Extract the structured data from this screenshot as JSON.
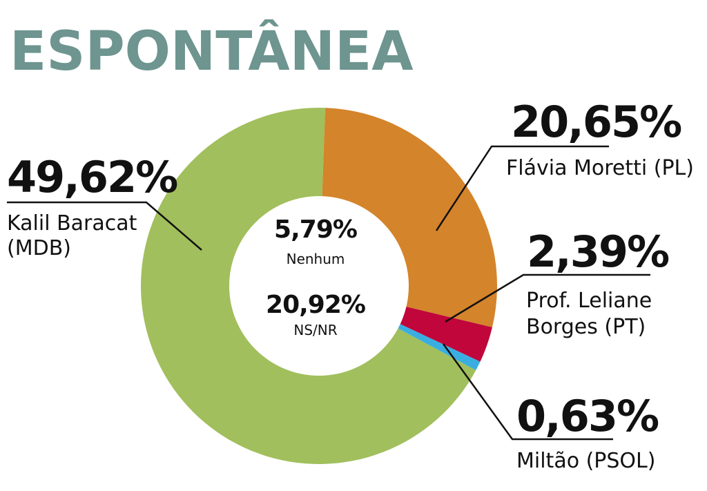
{
  "chart_data": {
    "type": "pie",
    "title": "ESPONTÂNEA",
    "slices": [
      {
        "label": "Flávia Moretti (PL)",
        "value": 20.65,
        "display": "20,65%",
        "color": "#d4842b"
      },
      {
        "label": "Prof. Leliane Borges (PT)",
        "value": 2.39,
        "display": "2,39%",
        "color": "#c0063a"
      },
      {
        "label": "Miltão (PSOL)",
        "value": 0.63,
        "display": "0,63%",
        "color": "#3aaee0"
      },
      {
        "label": "Kalil Baracat (MDB)",
        "value": 49.62,
        "display": "49,62%",
        "color": "#a1bf5c"
      }
    ],
    "center": [
      {
        "value": 5.79,
        "display": "5,79%",
        "label": "Nenhum"
      },
      {
        "value": 20.92,
        "display": "20,92%",
        "label": "NS/NR"
      }
    ]
  },
  "labels": {
    "kalil_line1": "Kalil Baracat",
    "kalil_line2": "(MDB)",
    "flavia": "Flávia Moretti (PL)",
    "leliane_line1": "Prof. Leliane",
    "leliane_line2": "Borges (PT)",
    "miltao": "Miltão (PSOL)"
  }
}
